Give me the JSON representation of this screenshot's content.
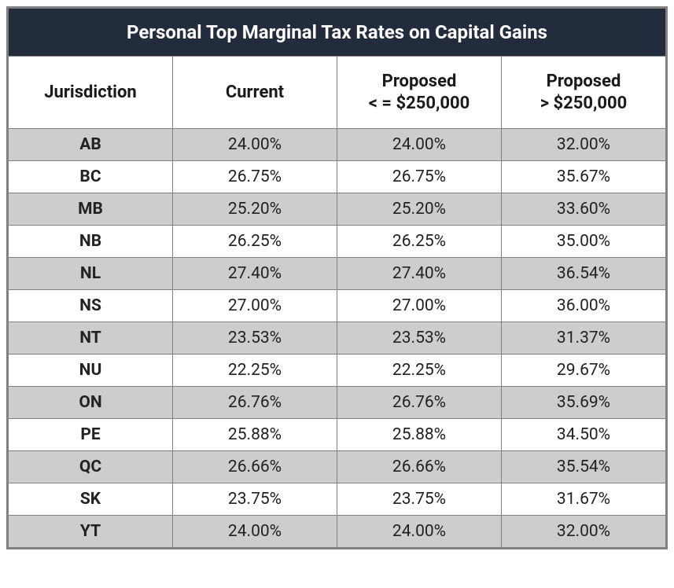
{
  "table": {
    "type": "table",
    "title": "Personal Top Marginal Tax Rates on Capital Gains",
    "background_color": "#ffffff",
    "title_bg_color": "#222c3c",
    "title_text_color": "#ffffff",
    "title_fontsize": 24,
    "header_fontsize": 22,
    "cell_fontsize": 21,
    "border_color": "#808080",
    "row_colors_odd": "#cdcdcd",
    "row_colors_even": "#ffffff",
    "text_color": "#222222",
    "column_widths_pct": [
      25,
      25,
      25,
      25
    ],
    "columns": [
      "Jurisdiction",
      "Current",
      "Proposed\n< = $250,000",
      "Proposed\n> $250,000"
    ],
    "rows": [
      [
        "AB",
        "24.00%",
        "24.00%",
        "32.00%"
      ],
      [
        "BC",
        "26.75%",
        "26.75%",
        "35.67%"
      ],
      [
        "MB",
        "25.20%",
        "25.20%",
        "33.60%"
      ],
      [
        "NB",
        "26.25%",
        "26.25%",
        "35.00%"
      ],
      [
        "NL",
        "27.40%",
        "27.40%",
        "36.54%"
      ],
      [
        "NS",
        "27.00%",
        "27.00%",
        "36.00%"
      ],
      [
        "NT",
        "23.53%",
        "23.53%",
        "31.37%"
      ],
      [
        "NU",
        "22.25%",
        "22.25%",
        "29.67%"
      ],
      [
        "ON",
        "26.76%",
        "26.76%",
        "35.69%"
      ],
      [
        "PE",
        "25.88%",
        "25.88%",
        "34.50%"
      ],
      [
        "QC",
        "26.66%",
        "26.66%",
        "35.54%"
      ],
      [
        "SK",
        "23.75%",
        "23.75%",
        "31.67%"
      ],
      [
        "YT",
        "24.00%",
        "24.00%",
        "32.00%"
      ]
    ]
  }
}
